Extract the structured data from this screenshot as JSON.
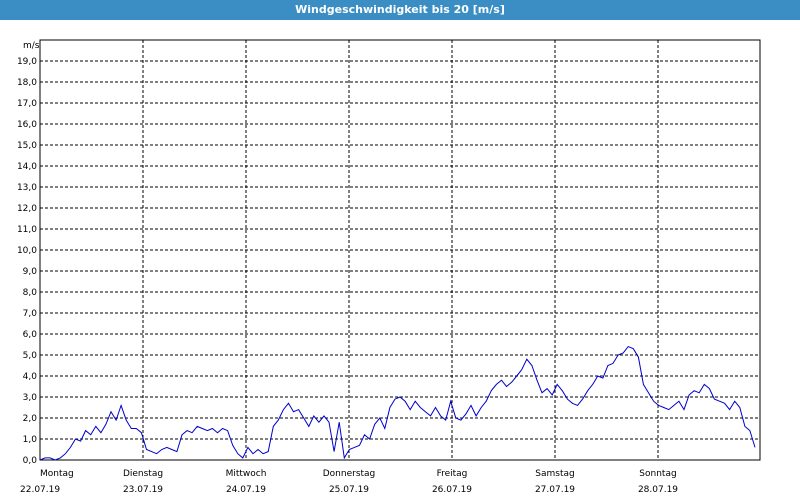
{
  "window": {
    "title": "Windgeschwindigkeit bis 20 [m/s]"
  },
  "colors": {
    "titlebar": "#3b8ec4",
    "line": "#0000cc",
    "grid": "#000000"
  },
  "chart_data": {
    "type": "line",
    "title": "Windgeschwindigkeit bis 20 [m/s]",
    "ylabel": "m/s",
    "ylim": [
      0,
      20
    ],
    "yticks": [
      "0,0",
      "1,0",
      "2,0",
      "3,0",
      "4,0",
      "5,0",
      "6,0",
      "7,0",
      "8,0",
      "9,0",
      "10,0",
      "11,0",
      "12,0",
      "13,0",
      "14,0",
      "15,0",
      "16,0",
      "17,0",
      "18,0",
      "19,0"
    ],
    "grid": true,
    "days": [
      {
        "name": "Montag",
        "date": "22.07.19"
      },
      {
        "name": "Dienstag",
        "date": "23.07.19"
      },
      {
        "name": "Mittwoch",
        "date": "24.07.19"
      },
      {
        "name": "Donnerstag",
        "date": "25.07.19"
      },
      {
        "name": "Freitag",
        "date": "26.07.19"
      },
      {
        "name": "Samstag",
        "date": "27.07.19"
      },
      {
        "name": "Sonntag",
        "date": "28.07.19"
      }
    ],
    "series": [
      {
        "values": [
          0.0,
          0.1,
          0.1,
          0.0,
          0.1,
          0.3,
          0.6,
          1.0,
          0.9,
          1.4,
          1.2,
          1.6,
          1.3,
          1.7,
          2.3,
          1.9,
          2.6,
          1.9,
          1.5,
          1.5,
          1.3,
          0.5,
          0.4,
          0.3,
          0.5,
          0.6,
          0.5,
          0.4,
          1.2,
          1.4,
          1.3,
          1.6,
          1.5,
          1.4,
          1.5,
          1.3,
          1.5,
          1.4,
          0.7,
          0.3,
          0.1,
          0.6,
          0.3,
          0.5,
          0.3,
          0.4,
          1.6,
          1.9,
          2.4,
          2.7,
          2.3,
          2.4,
          2.0,
          1.6,
          2.1,
          1.8,
          2.1,
          1.8,
          0.4,
          1.8,
          0.1,
          0.5,
          0.6,
          0.7,
          1.2,
          1.0,
          1.7,
          2.0,
          1.5,
          2.5,
          2.9,
          3.0,
          2.8,
          2.4,
          2.8,
          2.5,
          2.3,
          2.1,
          2.5,
          2.1,
          1.9,
          2.8,
          2.0,
          1.9,
          2.2,
          2.6,
          2.1,
          2.5,
          2.8,
          3.3,
          3.6,
          3.8,
          3.5,
          3.7,
          4.0,
          4.3,
          4.8,
          4.5,
          3.8,
          3.2,
          3.4,
          3.1,
          3.6,
          3.3,
          2.9,
          2.7,
          2.6,
          2.9,
          3.3,
          3.6,
          4.0,
          3.9,
          4.5,
          4.6,
          5.0,
          5.1,
          5.4,
          5.3,
          4.9,
          3.6,
          3.2,
          2.8,
          2.6,
          2.5,
          2.4,
          2.6,
          2.8,
          2.4,
          3.1,
          3.3,
          3.2,
          3.6,
          3.4,
          2.9,
          2.8,
          2.7,
          2.4,
          2.8,
          2.5,
          1.6,
          1.4,
          0.6
        ]
      }
    ]
  }
}
